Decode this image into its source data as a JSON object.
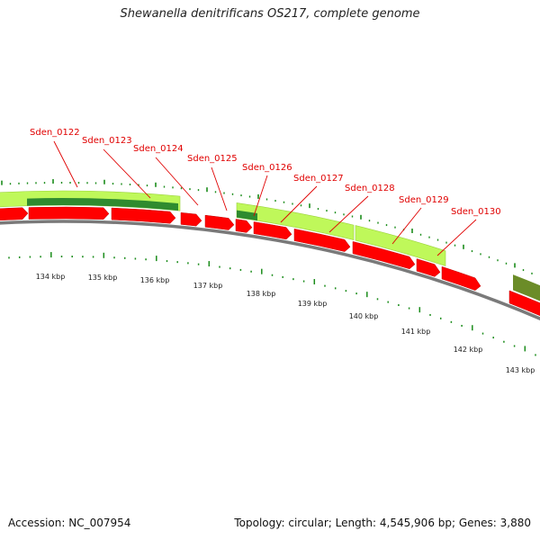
{
  "title": "Shewanella denitrificans OS217, complete genome",
  "footer": {
    "accession": "Accession: NC_007954",
    "info": "Topology: circular; Length: 4,545,906 bp; Genes: 3,880"
  },
  "colors": {
    "forward_gene": "#ff0000",
    "reverse_light": "#bff85a",
    "reverse_dark": "#2f8b2f",
    "olive": "#6b8c28",
    "backbone": "#7a7a7a",
    "tick": "#1a8c1a",
    "label": "#e00000"
  },
  "gene_labels": [
    "Sden_0122",
    "Sden_0123",
    "Sden_0124",
    "Sden_0125",
    "Sden_0126",
    "Sden_0127",
    "Sden_0128",
    "Sden_0129",
    "Sden_0130"
  ],
  "scale_labels": [
    "134 kbp",
    "135 kbp",
    "136 kbp",
    "137 kbp",
    "138 kbp",
    "139 kbp",
    "140 kbp",
    "141 kbp",
    "142 kbp",
    "143 kbp"
  ]
}
